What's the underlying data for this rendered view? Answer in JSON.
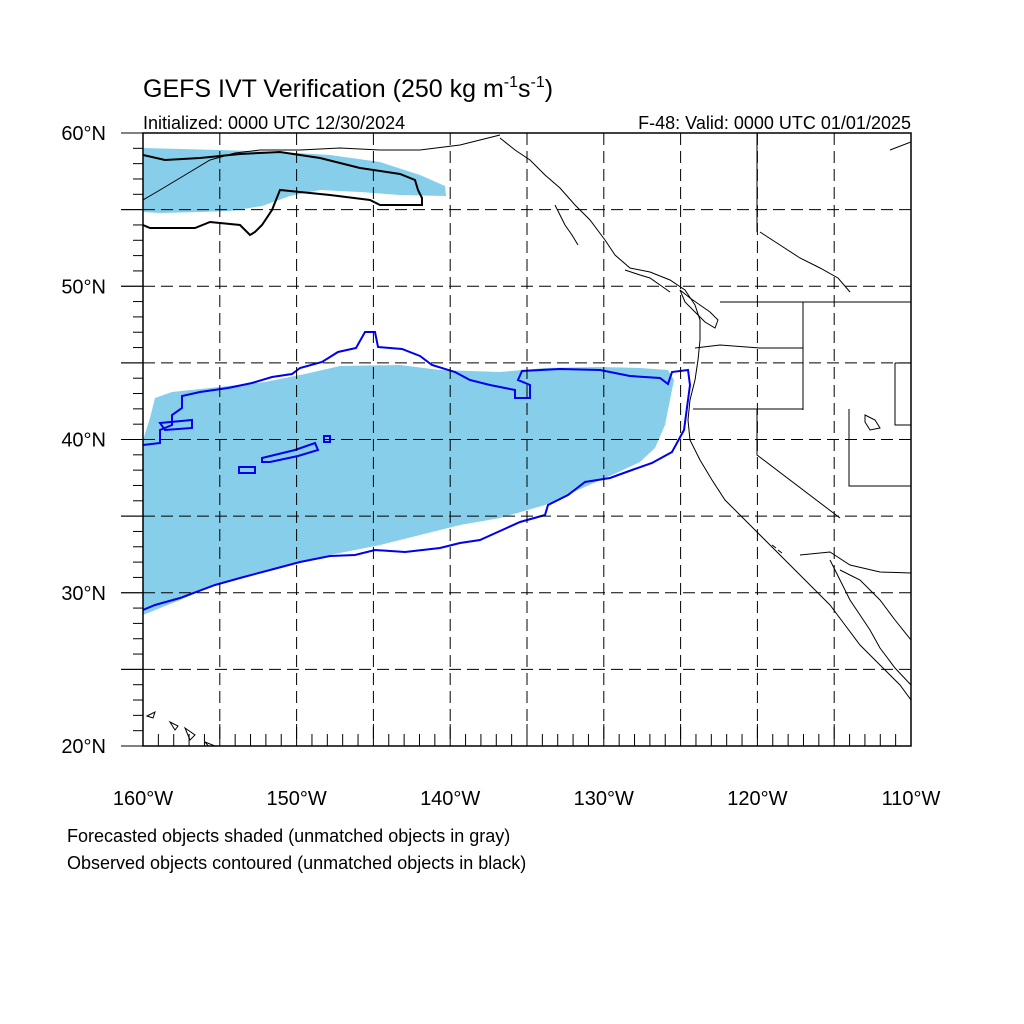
{
  "title": {
    "main": "GEFS IVT Verification (250 kg m",
    "exp1": "-1",
    "mid": "s",
    "exp2": "-1",
    "close": ")"
  },
  "subtitle": {
    "left": "Initialized: 0000 UTC 12/30/2024",
    "right": "F-48: Valid: 0000 UTC 01/01/2025"
  },
  "map": {
    "lon_range": [
      -160,
      -110
    ],
    "lat_range": [
      20,
      60
    ],
    "grid_lons": [
      -155,
      -150,
      -145,
      -140,
      -135,
      -130,
      -125,
      -120,
      -115
    ],
    "grid_lats": [
      25,
      30,
      35,
      40,
      45,
      50,
      55
    ],
    "lat_labels": [
      "20°N",
      "30°N",
      "40°N",
      "50°N",
      "60°N"
    ],
    "lon_labels": [
      "160°W",
      "150°W",
      "140°W",
      "130°W",
      "120°W",
      "110°W"
    ],
    "colors": {
      "forecast_fill": "#87ceeb",
      "observed_matched": "#0000ee",
      "observed_unmatched": "#000000",
      "coast": "#000000",
      "grid": "#000000"
    },
    "features": [
      "forecast-object-shaded",
      "observed-object-contour",
      "unmatched-observed-contour",
      "coastline",
      "state-borders"
    ]
  },
  "footnotes": [
    "Forecasted objects shaded (unmatched objects in gray)",
    "Observed objects contoured (unmatched objects in black)"
  ]
}
